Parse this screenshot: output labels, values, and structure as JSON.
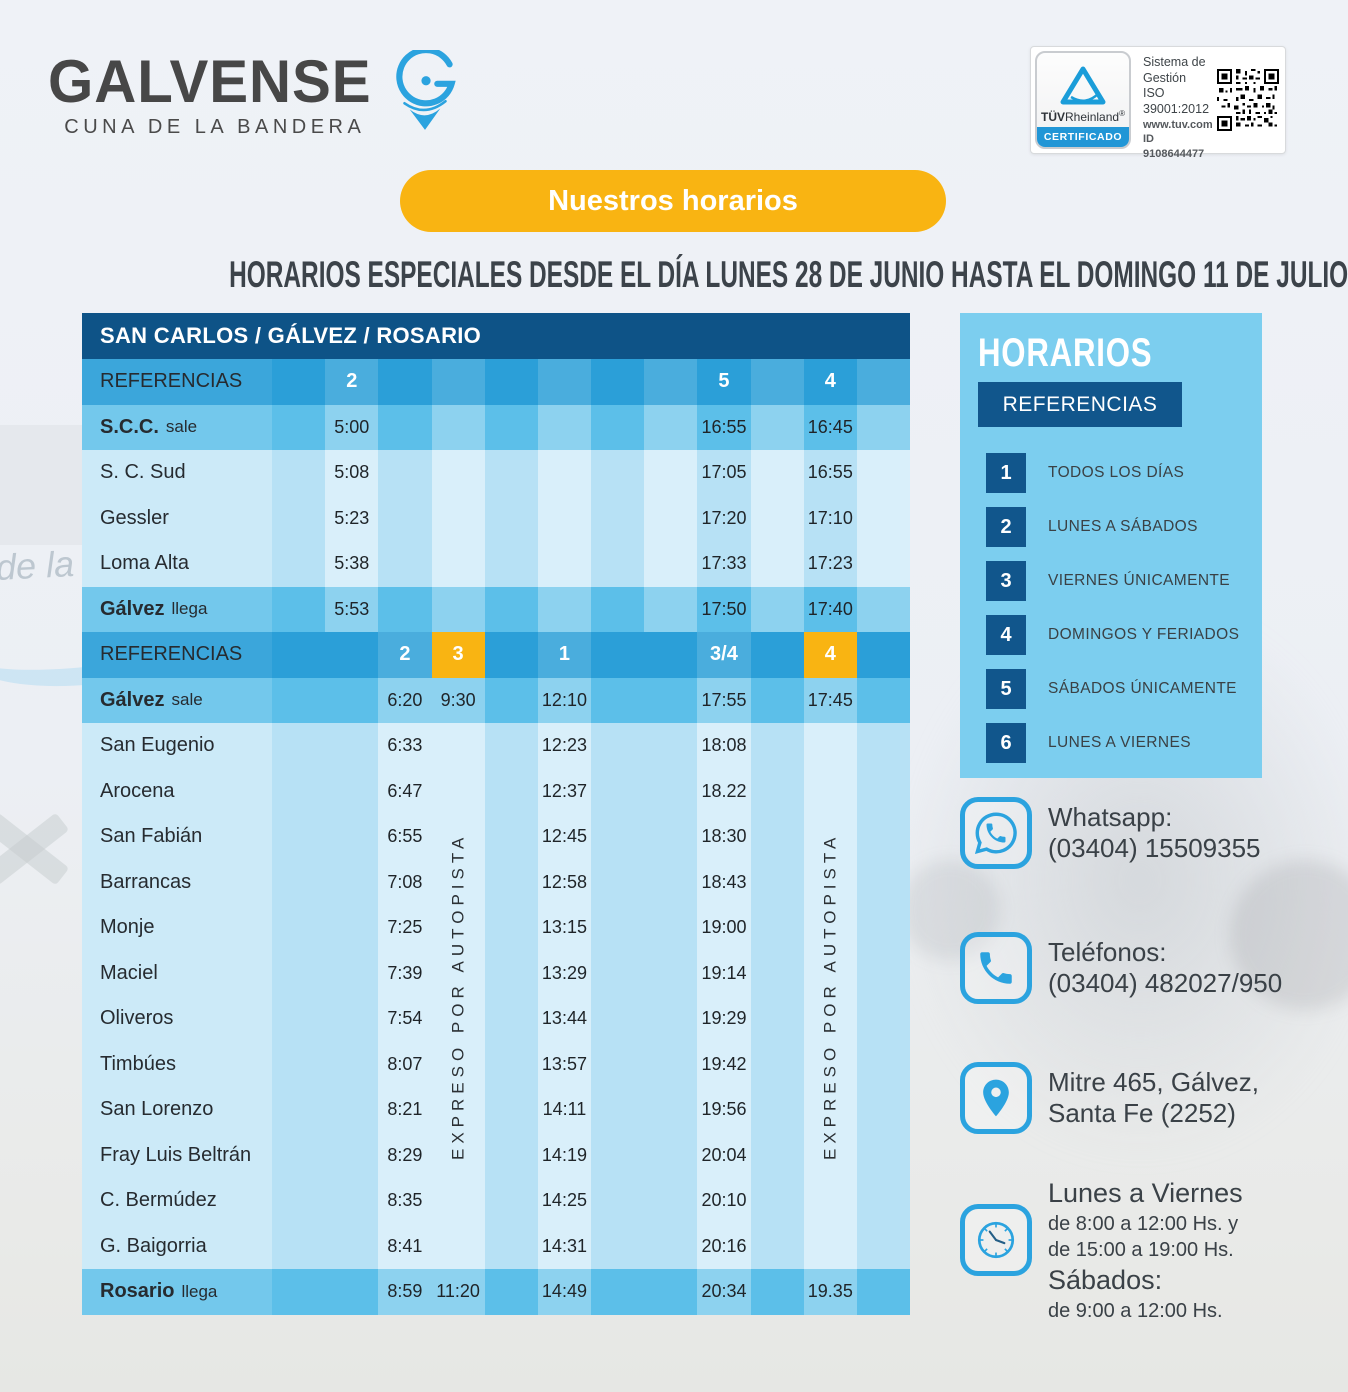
{
  "logo": {
    "brand": "GALVENSE",
    "tagline": "CUNA DE LA BANDERA"
  },
  "certification": {
    "brand_strong": "TÜV",
    "brand_rest": "Rheinland",
    "registered": "®",
    "badge": "CERTIFICADO",
    "system_line1": "Sistema de",
    "system_line2": "Gestión",
    "system_line3": "ISO 39001:2012",
    "url": "www.tuv.com",
    "id": "ID 9108644477"
  },
  "banner": {
    "label": "Nuestros horarios"
  },
  "page_title": "HORARIOS ESPECIALES DESDE EL DÍA LUNES 28 DE JUNIO HASTA EL DOMINGO 11 DE JULIO",
  "table": {
    "title": "SAN CARLOS / GÁLVEZ / ROSARIO",
    "columns": 12,
    "sections": [
      {
        "ref_row": {
          "label": "REFERENCIAS",
          "refs": [
            {
              "col": 2,
              "text": "2"
            },
            {
              "col": 9,
              "text": "5"
            },
            {
              "col": 11,
              "text": "4"
            }
          ]
        },
        "rows": [
          {
            "bold": "S.C.C.",
            "rest": "sale",
            "highlight": true,
            "times": {
              "2": "5:00",
              "9": "16:55",
              "11": "16:45"
            }
          },
          {
            "rest": "S. C. Sud",
            "times": {
              "2": "5:08",
              "9": "17:05",
              "11": "16:55"
            }
          },
          {
            "rest": "Gessler",
            "times": {
              "2": "5:23",
              "9": "17:20",
              "11": "17:10"
            }
          },
          {
            "rest": "Loma Alta",
            "times": {
              "2": "5:38",
              "9": "17:33",
              "11": "17:23"
            }
          },
          {
            "bold": "Gálvez",
            "rest": "llega",
            "highlight": true,
            "times": {
              "2": "5:53",
              "9": "17:50",
              "11": "17:40"
            }
          }
        ]
      },
      {
        "ref_row": {
          "label": "REFERENCIAS",
          "refs": [
            {
              "col": 3,
              "text": "2"
            },
            {
              "col": 4,
              "text": "3",
              "yellow": true
            },
            {
              "col": 6,
              "text": "1"
            },
            {
              "col": 9,
              "text": "3/4"
            },
            {
              "col": 11,
              "text": "4",
              "yellow": true
            }
          ]
        },
        "rows": [
          {
            "bold": "Gálvez",
            "rest": "sale",
            "highlight": true,
            "times": {
              "3": "6:20",
              "4": "9:30",
              "6": "12:10",
              "9": "17:55",
              "11": "17:45"
            }
          },
          {
            "rest": "San Eugenio",
            "times": {
              "3": "6:33",
              "6": "12:23",
              "9": "18:08"
            }
          },
          {
            "rest": "Arocena",
            "times": {
              "3": "6:47",
              "6": "12:37",
              "9": "18.22"
            }
          },
          {
            "rest": "San Fabián",
            "times": {
              "3": "6:55",
              "6": "12:45",
              "9": "18:30"
            }
          },
          {
            "rest": "Barrancas",
            "times": {
              "3": "7:08",
              "6": "12:58",
              "9": "18:43"
            }
          },
          {
            "rest": "Monje",
            "times": {
              "3": "7:25",
              "6": "13:15",
              "9": "19:00"
            }
          },
          {
            "rest": "Maciel",
            "times": {
              "3": "7:39",
              "6": "13:29",
              "9": "19:14"
            }
          },
          {
            "rest": "Oliveros",
            "times": {
              "3": "7:54",
              "6": "13:44",
              "9": "19:29"
            }
          },
          {
            "rest": "Timbúes",
            "times": {
              "3": "8:07",
              "6": "13:57",
              "9": "19:42"
            }
          },
          {
            "rest": "San Lorenzo",
            "times": {
              "3": "8:21",
              "6": "14:11",
              "9": "19:56"
            }
          },
          {
            "rest": "Fray Luis Beltrán",
            "times": {
              "3": "8:29",
              "6": "14:19",
              "9": "20:04"
            }
          },
          {
            "rest": "C. Bermúdez",
            "times": {
              "3": "8:35",
              "6": "14:25",
              "9": "20:10"
            }
          },
          {
            "rest": "G. Baigorria",
            "times": {
              "3": "8:41",
              "6": "14:31",
              "9": "20:16"
            }
          },
          {
            "bold": "Rosario",
            "rest": "llega",
            "highlight": true,
            "times": {
              "3": "8:59",
              "4": "11:20",
              "6": "14:49",
              "9": "20:34",
              "11": "19.35"
            }
          }
        ],
        "vertical_labels": [
          {
            "col": 4,
            "text": "EXPRESO POR AUTOPISTA"
          },
          {
            "col": 11,
            "text": "EXPRESO POR AUTOPISTA"
          }
        ]
      }
    ]
  },
  "legend": {
    "title": "HORARIOS",
    "subtitle": "REFERENCIAS",
    "items": [
      {
        "num": "1",
        "label": "TODOS LOS DÍAS"
      },
      {
        "num": "2",
        "label": "LUNES A SÁBADOS"
      },
      {
        "num": "3",
        "label": "VIERNES ÚNICAMENTE"
      },
      {
        "num": "4",
        "label": "DOMINGOS Y FERIADOS"
      },
      {
        "num": "5",
        "label": "SÁBADOS ÚNICAMENTE"
      },
      {
        "num": "6",
        "label": "LUNES A VIERNES"
      }
    ]
  },
  "contact": {
    "whatsapp": {
      "label": "Whatsapp:",
      "value": "(03404) 15509355"
    },
    "phone": {
      "label": "Teléfonos:",
      "value": "(03404) 482027/950"
    },
    "address": {
      "line1": "Mitre 465, Gálvez,",
      "line2": "Santa Fe (2252)"
    },
    "hours": {
      "weekdays": "Lunes a Viernes",
      "weekdays_line1": "de 8:00 a 12:00 Hs. y",
      "weekdays_line2": "de 15:00 a 19:00 Hs.",
      "saturday": "Sábados:",
      "saturday_line1": "de 9:00 a 12:00 Hs."
    }
  },
  "background": {
    "watermark_text": "de la"
  },
  "colors": {
    "accent_yellow": "#F9B412",
    "brand_blue": "#2BA3DF",
    "navy": "#11568C",
    "table_header_navy": "#0E5387",
    "referencias_blue": "#2B9FD8",
    "highlight_row_blue": "#5CBFE9",
    "light_row_blue": "#B7E1F5",
    "panel_blue": "#7CCEEF"
  }
}
